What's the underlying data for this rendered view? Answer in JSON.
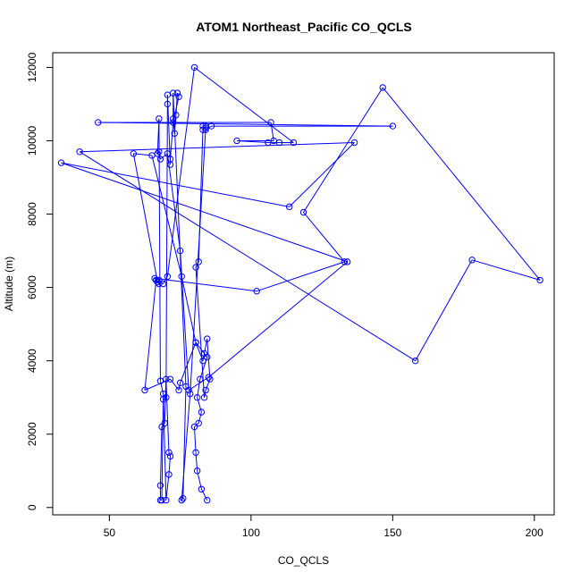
{
  "chart_data": {
    "type": "line",
    "title": "ATOM1 Northeast_Pacific CO_QCLS",
    "xlabel": "CO_QCLS",
    "ylabel": "Altitude (m)",
    "xlim": [
      30,
      207
    ],
    "ylim": [
      -200,
      12400
    ],
    "x_ticks": [
      50,
      100,
      150,
      200
    ],
    "y_ticks": [
      0,
      2000,
      4000,
      6000,
      8000,
      10000,
      12000
    ],
    "grid": false,
    "legend": "none",
    "series_color": "#0000ff",
    "markers": "open-circle",
    "series": [
      {
        "x": [
          84.5,
          82.5,
          81.0,
          80.5,
          80.0,
          81.5,
          82.5,
          81.0,
          82.0,
          84.5,
          80.5,
          83.0,
          83.5,
          84.5,
          85.5,
          84.0,
          83.5,
          80.5,
          81.5,
          83.0,
          84.0,
          84.0,
          78.5,
          75.5,
          76.0,
          77.0,
          72.5,
          72.5,
          73.0,
          73.5,
          74.0,
          74.5,
          72.5,
          71.5,
          71.5,
          70.5,
          70.5,
          70.0,
          69.0,
          68.5,
          68.0,
          68.0,
          68.5,
          69.5,
          70.0,
          71.0,
          71.5,
          71.0,
          70.0,
          69.0,
          68.0,
          67.5,
          67.0,
          67.5,
          68.0,
          70.5,
          75.0,
          78.0,
          85.0,
          134.0,
          33.0,
          113.5,
          136.5,
          39.5,
          158.0,
          178.0,
          202.0,
          146.5,
          118.5,
          133.0,
          102.0,
          66.0,
          66.5,
          67.0,
          58.5,
          65.0,
          75.5,
          80.5,
          75.0,
          74.5,
          71.5,
          62.5,
          66.5,
          67.0,
          67.5,
          67.5,
          69.0,
          70.5,
          80.0,
          115.0,
          110.0,
          106.0,
          95.0,
          108.0,
          107.0,
          46.0,
          150.0,
          86.0,
          84.0,
          83.0
        ],
        "y": [
          200,
          500,
          1000,
          1500,
          2200,
          2300,
          2600,
          3000,
          3500,
          4100,
          4500,
          4000,
          4200,
          4600,
          3500,
          3200,
          3000,
          6550,
          6700,
          10300,
          10400,
          10350,
          3100,
          200,
          250,
          3300,
          11300,
          10600,
          10200,
          10700,
          11300,
          11200,
          10500,
          9500,
          9350,
          11250,
          11000,
          3000,
          2950,
          200,
          200,
          600,
          2200,
          2300,
          3500,
          1500,
          1400,
          900,
          200,
          3100,
          3450,
          10600,
          9650,
          9700,
          9500,
          9650,
          7000,
          3200,
          3550,
          6700,
          9400,
          8200,
          9950,
          9700,
          4000,
          6750,
          6200,
          11450,
          8050,
          6700,
          5900,
          6250,
          6200,
          6150,
          9650,
          9600,
          6300,
          4500,
          3400,
          3200,
          3500,
          3200,
          6200,
          6150,
          6100,
          6200,
          6100,
          6300,
          12000,
          9950,
          9950,
          9950,
          10000,
          10000,
          10500,
          10500,
          10400,
          10400,
          10300,
          10400
        ]
      }
    ]
  }
}
